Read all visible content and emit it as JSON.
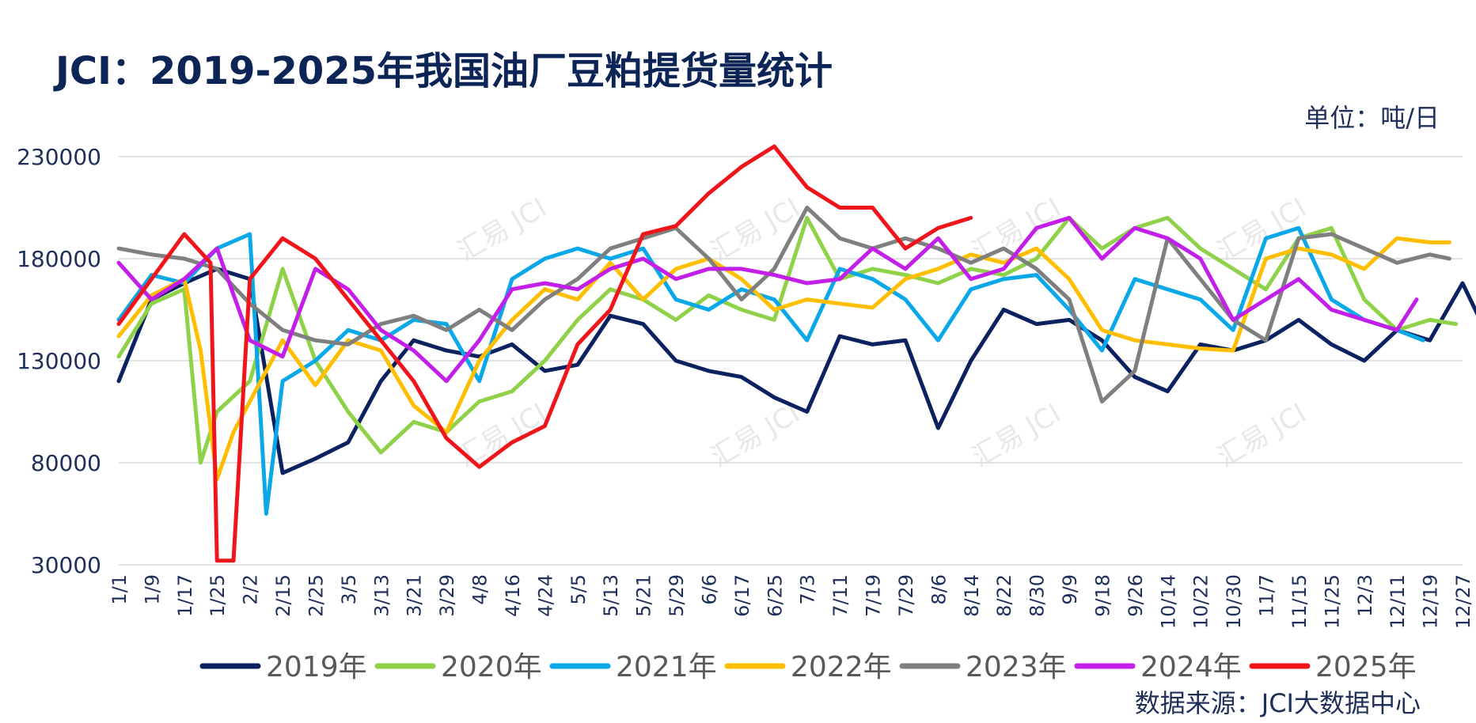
{
  "header": {
    "title": "JCI：2019-2025年我国油厂豆粕提货量统计",
    "unit": "单位：吨/日"
  },
  "footer": {
    "source": "数据来源：JCI大数据中心"
  },
  "watermark": {
    "text": "汇易 JCI"
  },
  "chart_data": {
    "type": "line",
    "title": "JCI：2019-2025年我国油厂豆粕提货量统计",
    "ylabel": "单位：吨/日",
    "ylim": [
      30000,
      230000
    ],
    "yticks": [
      "230000",
      "180000",
      "130000",
      "80000",
      "30000"
    ],
    "ytick_values": [
      230000,
      180000,
      130000,
      80000,
      30000
    ],
    "x_tick_labels": [
      "1/1",
      "1/9",
      "1/17",
      "1/25",
      "2/2",
      "2/15",
      "2/25",
      "3/5",
      "3/13",
      "3/21",
      "3/29",
      "4/8",
      "4/16",
      "4/24",
      "5/5",
      "5/13",
      "5/21",
      "5/29",
      "6/6",
      "6/17",
      "6/25",
      "7/3",
      "7/11",
      "7/19",
      "7/29",
      "8/6",
      "8/14",
      "8/22",
      "8/30",
      "9/9",
      "9/18",
      "9/26",
      "10/14",
      "10/22",
      "10/30",
      "11/7",
      "11/15",
      "11/25",
      "12/3",
      "12/11",
      "12/19",
      "12/27"
    ],
    "x_domain_points": 42,
    "grid": true,
    "legend_position": "bottom",
    "series": [
      {
        "name": "2019年",
        "color": "#0b2160",
        "x": [
          0,
          0.5,
          1,
          2,
          3,
          4,
          5,
          6,
          7,
          8,
          9,
          10,
          11,
          12,
          13,
          14,
          15,
          16,
          17,
          18,
          19,
          20,
          21,
          22,
          23,
          24,
          25,
          26,
          27,
          28,
          29,
          30,
          31,
          32,
          33,
          34,
          35,
          36,
          37,
          38,
          39,
          40,
          41,
          41.6
        ],
        "values": [
          120000,
          140000,
          160000,
          168000,
          175000,
          170000,
          75000,
          82000,
          90000,
          120000,
          140000,
          135000,
          132000,
          138000,
          125000,
          128000,
          152000,
          148000,
          130000,
          125000,
          122000,
          112000,
          105000,
          142000,
          138000,
          140000,
          97000,
          130000,
          155000,
          148000,
          150000,
          140000,
          122000,
          115000,
          138000,
          135000,
          140000,
          150000,
          138000,
          130000,
          145000,
          140000,
          168000,
          148000
        ]
      },
      {
        "name": "2020年",
        "color": "#8fd24a",
        "x": [
          0,
          1,
          2,
          2.5,
          3,
          4,
          5,
          6,
          7,
          8,
          9,
          10,
          11,
          12,
          13,
          14,
          15,
          16,
          17,
          18,
          19,
          20,
          21,
          22,
          23,
          24,
          25,
          26,
          27,
          28,
          29,
          30,
          31,
          32,
          33,
          34,
          35,
          36,
          37,
          38,
          39,
          40,
          40.8
        ],
        "values": [
          132000,
          158000,
          165000,
          80000,
          105000,
          120000,
          175000,
          130000,
          105000,
          85000,
          100000,
          95000,
          110000,
          115000,
          130000,
          150000,
          165000,
          160000,
          150000,
          162000,
          155000,
          150000,
          200000,
          170000,
          175000,
          172000,
          168000,
          175000,
          172000,
          180000,
          200000,
          185000,
          195000,
          200000,
          185000,
          175000,
          165000,
          190000,
          195000,
          160000,
          145000,
          150000,
          148000
        ]
      },
      {
        "name": "2021年",
        "color": "#0aa8e8",
        "x": [
          0,
          1,
          2,
          3,
          4,
          4.5,
          5,
          6,
          7,
          8,
          9,
          10,
          11,
          12,
          13,
          14,
          15,
          16,
          17,
          18,
          19,
          20,
          21,
          22,
          23,
          24,
          25,
          26,
          27,
          28,
          29,
          30,
          31,
          32,
          33,
          34,
          35,
          36,
          37,
          38,
          39,
          39.8
        ],
        "values": [
          150000,
          172000,
          168000,
          185000,
          192000,
          55000,
          120000,
          130000,
          145000,
          140000,
          150000,
          148000,
          120000,
          170000,
          180000,
          185000,
          180000,
          185000,
          160000,
          155000,
          165000,
          160000,
          140000,
          175000,
          170000,
          160000,
          140000,
          165000,
          170000,
          172000,
          155000,
          135000,
          170000,
          165000,
          160000,
          145000,
          190000,
          195000,
          160000,
          150000,
          145000,
          140000
        ]
      },
      {
        "name": "2022年",
        "color": "#ffbf00",
        "x": [
          0,
          1,
          2,
          2.5,
          3,
          3.5,
          4,
          5,
          6,
          7,
          8,
          9,
          10,
          11,
          12,
          13,
          14,
          15,
          16,
          17,
          18,
          19,
          20,
          21,
          22,
          23,
          24,
          25,
          26,
          27,
          28,
          29,
          30,
          31,
          32,
          33,
          34,
          35,
          36,
          37,
          38,
          39,
          40,
          40.6
        ],
        "values": [
          142000,
          162000,
          170000,
          135000,
          72000,
          95000,
          110000,
          140000,
          118000,
          140000,
          135000,
          108000,
          95000,
          130000,
          150000,
          165000,
          160000,
          178000,
          160000,
          175000,
          180000,
          170000,
          155000,
          160000,
          158000,
          156000,
          170000,
          175000,
          182000,
          178000,
          185000,
          170000,
          145000,
          140000,
          138000,
          136000,
          135000,
          180000,
          185000,
          182000,
          175000,
          190000,
          188000,
          188000
        ]
      },
      {
        "name": "2023年",
        "color": "#7f7f7f",
        "x": [
          0,
          1,
          2,
          3,
          4,
          5,
          6,
          7,
          8,
          9,
          10,
          11,
          12,
          13,
          14,
          15,
          16,
          17,
          18,
          19,
          20,
          21,
          22,
          23,
          24,
          25,
          26,
          27,
          28,
          29,
          30,
          31,
          32,
          33,
          34,
          35,
          36,
          37,
          38,
          39,
          40,
          40.6
        ],
        "values": [
          185000,
          182000,
          180000,
          175000,
          158000,
          145000,
          140000,
          138000,
          148000,
          152000,
          145000,
          155000,
          145000,
          160000,
          170000,
          185000,
          190000,
          195000,
          180000,
          160000,
          175000,
          205000,
          190000,
          185000,
          190000,
          185000,
          178000,
          185000,
          175000,
          160000,
          110000,
          125000,
          190000,
          170000,
          150000,
          140000,
          190000,
          192000,
          185000,
          178000,
          182000,
          180000
        ]
      },
      {
        "name": "2024年",
        "color": "#c21fe8",
        "x": [
          0,
          1,
          2,
          3,
          4,
          5,
          6,
          7,
          8,
          9,
          10,
          11,
          12,
          13,
          14,
          15,
          16,
          17,
          18,
          19,
          20,
          21,
          22,
          23,
          24,
          25,
          26,
          27,
          28,
          29,
          30,
          31,
          32,
          33,
          34,
          35,
          36,
          37,
          38,
          39,
          39.6
        ],
        "values": [
          178000,
          160000,
          170000,
          185000,
          140000,
          132000,
          175000,
          165000,
          145000,
          135000,
          120000,
          140000,
          165000,
          168000,
          165000,
          175000,
          180000,
          170000,
          175000,
          175000,
          172000,
          168000,
          170000,
          185000,
          175000,
          190000,
          170000,
          175000,
          195000,
          200000,
          180000,
          195000,
          190000,
          180000,
          150000,
          160000,
          170000,
          155000,
          150000,
          145000,
          160000
        ]
      },
      {
        "name": "2025年",
        "color": "#f0151a",
        "x": [
          0,
          1,
          2,
          2.8,
          3,
          3.5,
          4,
          5,
          6,
          7,
          8,
          9,
          10,
          11,
          12,
          13,
          14,
          15,
          16,
          17,
          18,
          19,
          20,
          21,
          22,
          23,
          24,
          25,
          26
        ],
        "values": [
          148000,
          170000,
          192000,
          178000,
          32000,
          32000,
          170000,
          190000,
          180000,
          160000,
          140000,
          120000,
          92000,
          78000,
          90000,
          98000,
          138000,
          155000,
          192000,
          196000,
          212000,
          225000,
          235000,
          215000,
          205000,
          205000,
          185000,
          195000,
          200000
        ]
      }
    ]
  }
}
